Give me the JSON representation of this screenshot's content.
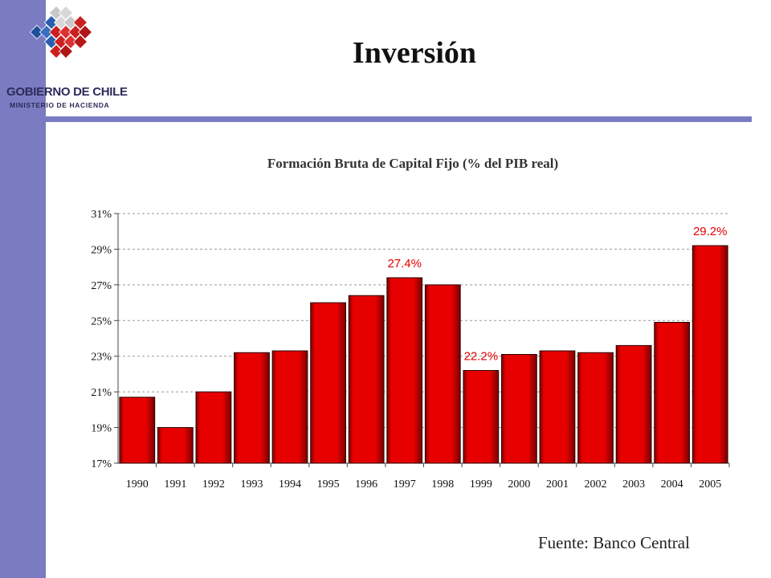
{
  "header": {
    "title": "Inversión",
    "logo": {
      "org_name": "GOBIERNO DE CHILE",
      "ministry": "MINISTERIO DE HACIENDA",
      "icon": "chile-government-logo-icon"
    }
  },
  "colors": {
    "accent": "#7b7bc2",
    "bar_fill": "#e60000",
    "bar_shadow": "#7a0000",
    "data_label": "#e00000"
  },
  "chart_data": {
    "type": "bar",
    "title": "Formación Bruta de Capital Fijo (% del PIB real)",
    "xlabel": "",
    "ylabel": "",
    "categories": [
      "1990",
      "1991",
      "1992",
      "1993",
      "1994",
      "1995",
      "1996",
      "1997",
      "1998",
      "1999",
      "2000",
      "2001",
      "2002",
      "2003",
      "2004",
      "2005"
    ],
    "values": [
      20.7,
      19.0,
      21.0,
      23.2,
      23.3,
      26.0,
      26.4,
      27.4,
      27.0,
      22.2,
      23.1,
      23.3,
      23.2,
      23.6,
      24.9,
      29.2
    ],
    "ylim": [
      17,
      31
    ],
    "yticks": [
      {
        "value": 17,
        "label": "17%"
      },
      {
        "value": 19,
        "label": "19%"
      },
      {
        "value": 21,
        "label": "21%"
      },
      {
        "value": 23,
        "label": "23%"
      },
      {
        "value": 25,
        "label": "25%"
      },
      {
        "value": 27,
        "label": "27%"
      },
      {
        "value": 29,
        "label": "29%"
      },
      {
        "value": 31,
        "label": "31%"
      }
    ],
    "annotations": [
      {
        "category": "1997",
        "value": 27.4,
        "label": "27.4%"
      },
      {
        "category": "1999",
        "value": 22.2,
        "label": "22.2%"
      },
      {
        "category": "2005",
        "value": 29.2,
        "label": "29.2%"
      }
    ],
    "grid": true
  },
  "footer": {
    "source": "Fuente: Banco Central"
  }
}
